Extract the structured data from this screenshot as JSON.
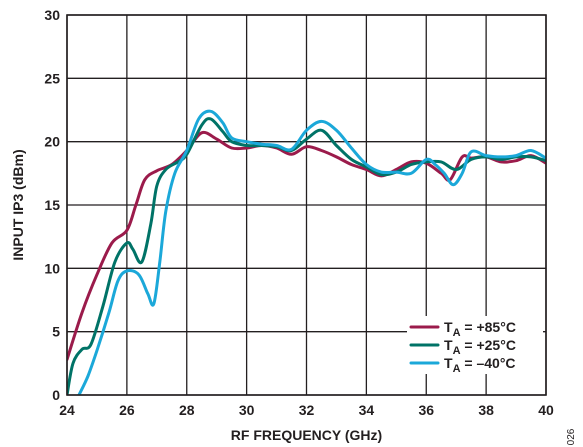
{
  "chart_data": {
    "type": "line",
    "xlabel": "RF FREQUENCY (GHz)",
    "ylabel": "INPUT IP3 (dBm)",
    "xlim": [
      24,
      40
    ],
    "ylim": [
      0,
      30
    ],
    "xticks": [
      24,
      26,
      28,
      30,
      32,
      34,
      36,
      38,
      40
    ],
    "yticks": [
      0,
      5,
      10,
      15,
      20,
      25,
      30
    ],
    "grid": true,
    "legend_position": "bottom-right",
    "colors": {
      "axis": "#231f20",
      "grid": "#231f20"
    },
    "series": [
      {
        "name": "T_A = +85°C",
        "name_main": "T",
        "name_sub": "A",
        "name_rest": " = +85°C",
        "color": "#9b1b4b",
        "points": [
          [
            24.0,
            2.8
          ],
          [
            24.5,
            6.5
          ],
          [
            25.0,
            9.5
          ],
          [
            25.5,
            12.0
          ],
          [
            26.0,
            13.0
          ],
          [
            26.3,
            15.0
          ],
          [
            26.6,
            17.0
          ],
          [
            27.0,
            17.7
          ],
          [
            27.5,
            18.2
          ],
          [
            28.0,
            19.3
          ],
          [
            28.5,
            20.7
          ],
          [
            29.0,
            20.2
          ],
          [
            29.5,
            19.5
          ],
          [
            30.0,
            19.5
          ],
          [
            30.5,
            19.7
          ],
          [
            31.0,
            19.5
          ],
          [
            31.5,
            19.0
          ],
          [
            32.0,
            19.6
          ],
          [
            32.5,
            19.3
          ],
          [
            33.0,
            18.8
          ],
          [
            33.5,
            18.2
          ],
          [
            34.0,
            17.8
          ],
          [
            34.5,
            17.3
          ],
          [
            35.0,
            17.8
          ],
          [
            35.5,
            18.4
          ],
          [
            36.0,
            18.3
          ],
          [
            36.5,
            17.5
          ],
          [
            36.8,
            17.0
          ],
          [
            37.2,
            18.8
          ],
          [
            37.5,
            18.7
          ],
          [
            38.0,
            18.8
          ],
          [
            38.5,
            18.4
          ],
          [
            39.0,
            18.5
          ],
          [
            39.5,
            18.9
          ],
          [
            40.0,
            18.3
          ]
        ]
      },
      {
        "name": "T_A = +25°C",
        "name_main": "T",
        "name_sub": "A",
        "name_rest": " = +25°C",
        "color": "#007367",
        "points": [
          [
            24.0,
            0.0
          ],
          [
            24.2,
            2.5
          ],
          [
            24.5,
            3.6
          ],
          [
            24.8,
            4.0
          ],
          [
            25.2,
            7.0
          ],
          [
            25.6,
            10.5
          ],
          [
            26.0,
            12.0
          ],
          [
            26.2,
            11.5
          ],
          [
            26.5,
            10.5
          ],
          [
            26.8,
            13.5
          ],
          [
            27.0,
            16.5
          ],
          [
            27.3,
            17.8
          ],
          [
            27.7,
            18.4
          ],
          [
            28.0,
            19.0
          ],
          [
            28.5,
            21.3
          ],
          [
            28.8,
            21.8
          ],
          [
            29.2,
            20.8
          ],
          [
            29.5,
            20.0
          ],
          [
            30.0,
            19.7
          ],
          [
            30.5,
            19.7
          ],
          [
            31.0,
            19.6
          ],
          [
            31.5,
            19.3
          ],
          [
            32.0,
            20.2
          ],
          [
            32.5,
            20.9
          ],
          [
            33.0,
            19.7
          ],
          [
            33.5,
            18.6
          ],
          [
            34.0,
            18.0
          ],
          [
            34.5,
            17.4
          ],
          [
            35.0,
            17.6
          ],
          [
            35.5,
            18.2
          ],
          [
            36.0,
            18.4
          ],
          [
            36.5,
            18.4
          ],
          [
            37.0,
            17.8
          ],
          [
            37.5,
            18.6
          ],
          [
            38.0,
            18.8
          ],
          [
            38.5,
            18.6
          ],
          [
            39.0,
            18.8
          ],
          [
            39.5,
            18.8
          ],
          [
            40.0,
            18.5
          ]
        ]
      },
      {
        "name": "T_A = −40°C",
        "name_main": "T",
        "name_sub": "A",
        "name_rest": " = –40°C",
        "color": "#1ba8d9",
        "points": [
          [
            24.4,
            0.0
          ],
          [
            24.7,
            1.5
          ],
          [
            25.0,
            3.5
          ],
          [
            25.4,
            6.5
          ],
          [
            25.7,
            9.0
          ],
          [
            26.0,
            9.8
          ],
          [
            26.4,
            9.5
          ],
          [
            26.7,
            8.0
          ],
          [
            26.9,
            7.2
          ],
          [
            27.1,
            10.5
          ],
          [
            27.3,
            14.5
          ],
          [
            27.6,
            17.5
          ],
          [
            28.0,
            19.3
          ],
          [
            28.4,
            21.8
          ],
          [
            28.8,
            22.4
          ],
          [
            29.2,
            21.5
          ],
          [
            29.5,
            20.3
          ],
          [
            30.0,
            20.0
          ],
          [
            30.5,
            19.8
          ],
          [
            31.0,
            19.7
          ],
          [
            31.5,
            19.4
          ],
          [
            32.0,
            20.9
          ],
          [
            32.5,
            21.6
          ],
          [
            33.0,
            20.9
          ],
          [
            33.5,
            19.5
          ],
          [
            34.0,
            18.2
          ],
          [
            34.5,
            17.6
          ],
          [
            35.0,
            17.6
          ],
          [
            35.5,
            17.5
          ],
          [
            36.0,
            18.6
          ],
          [
            36.3,
            18.2
          ],
          [
            36.6,
            17.5
          ],
          [
            36.9,
            16.6
          ],
          [
            37.2,
            17.5
          ],
          [
            37.5,
            19.2
          ],
          [
            38.0,
            18.9
          ],
          [
            38.5,
            18.8
          ],
          [
            39.0,
            18.9
          ],
          [
            39.5,
            19.3
          ],
          [
            40.0,
            18.7
          ]
        ]
      }
    ]
  },
  "side_id": "026"
}
